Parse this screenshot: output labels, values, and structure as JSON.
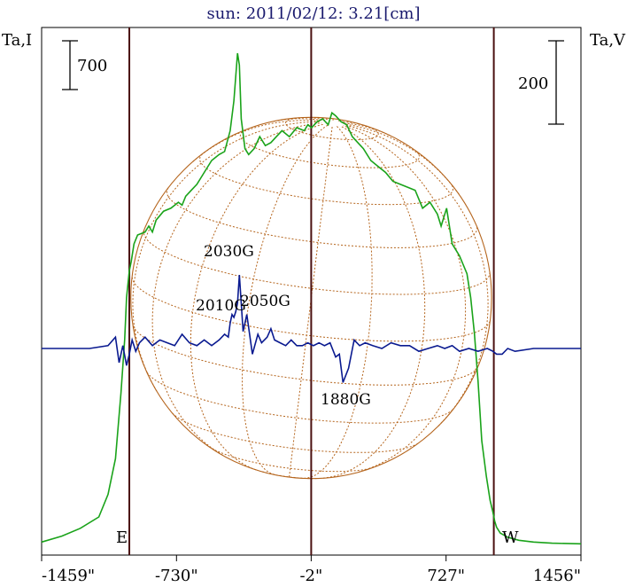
{
  "chart_data": {
    "type": "line",
    "title": "sun: 2011/02/12: 3.21[cm]",
    "ylabel_left": "Ta,I",
    "ylabel_right": "Ta,V",
    "scale_bar_left": "700",
    "scale_bar_right": "200",
    "x_ticks": [
      {
        "value": -1459,
        "label": "-1459\""
      },
      {
        "value": -730,
        "label": "-730\""
      },
      {
        "value": -2,
        "label": "-2\""
      },
      {
        "value": 727,
        "label": "727\""
      },
      {
        "value": 1456,
        "label": "1456\""
      }
    ],
    "xlim": [
      -1459,
      1456
    ],
    "limb_labels": {
      "east": "E",
      "west": "W"
    },
    "limb_positions": [
      -985,
      985
    ],
    "center_line": -2,
    "disk_radius": 975,
    "annotations": [
      {
        "text": "2030G",
        "x": -410
      },
      {
        "text": "2010G",
        "x": -470
      },
      {
        "text": "2050G",
        "x": -225
      },
      {
        "text": "1880G",
        "x": 160
      }
    ],
    "series": [
      {
        "name": "I",
        "color": "#1aa31a",
        "x": [
          -1459,
          -1350,
          -1250,
          -1150,
          -1100,
          -1060,
          -1030,
          -1010,
          -1000,
          -985,
          -975,
          -960,
          -940,
          -900,
          -880,
          -860,
          -840,
          -800,
          -760,
          -720,
          -700,
          -680,
          -650,
          -620,
          -580,
          -540,
          -500,
          -470,
          -440,
          -420,
          -400,
          -390,
          -380,
          -360,
          -340,
          -310,
          -280,
          -250,
          -220,
          -190,
          -160,
          -120,
          -80,
          -40,
          -20,
          0,
          30,
          60,
          90,
          110,
          130,
          160,
          190,
          220,
          250,
          280,
          320,
          360,
          400,
          440,
          480,
          520,
          560,
          600,
          640,
          680,
          700,
          730,
          760,
          800,
          840,
          860,
          880,
          900,
          920,
          945,
          965,
          980,
          990,
          1000,
          1020,
          1060,
          1120,
          1200,
          1300,
          1456
        ],
        "y": [
          100,
          200,
          330,
          520,
          900,
          1500,
          2600,
          3500,
          4200,
          4650,
          4800,
          5100,
          5250,
          5300,
          5400,
          5300,
          5500,
          5650,
          5700,
          5800,
          5750,
          5900,
          6000,
          6100,
          6300,
          6500,
          6600,
          6650,
          7000,
          7500,
          8300,
          8100,
          7200,
          6700,
          6600,
          6700,
          6900,
          6750,
          6800,
          6900,
          7000,
          6900,
          7050,
          7000,
          7100,
          7050,
          7150,
          7200,
          7100,
          7300,
          7250,
          7150,
          7100,
          6900,
          6800,
          6700,
          6500,
          6400,
          6300,
          6150,
          6100,
          6050,
          6000,
          5700,
          5800,
          5600,
          5400,
          5700,
          5100,
          4900,
          4600,
          4200,
          3600,
          2800,
          1800,
          1200,
          800,
          600,
          450,
          350,
          250,
          180,
          130,
          100,
          80,
          70
        ]
      },
      {
        "name": "V",
        "color": "#0a1a90",
        "x": [
          -1459,
          -1200,
          -1100,
          -1060,
          -1040,
          -1020,
          -1000,
          -985,
          -970,
          -950,
          -930,
          -900,
          -860,
          -820,
          -780,
          -740,
          -700,
          -660,
          -620,
          -580,
          -540,
          -500,
          -470,
          -450,
          -440,
          -430,
          -420,
          -410,
          -400,
          -390,
          -370,
          -350,
          -320,
          -290,
          -270,
          -240,
          -220,
          -200,
          -170,
          -140,
          -110,
          -80,
          -50,
          -20,
          10,
          40,
          70,
          100,
          130,
          150,
          170,
          200,
          230,
          260,
          290,
          330,
          380,
          430,
          480,
          530,
          580,
          630,
          680,
          720,
          760,
          800,
          850,
          900,
          950,
          980,
          1000,
          1030,
          1060,
          1100,
          1200,
          1456
        ],
        "y": [
          0,
          0,
          5,
          20,
          -25,
          5,
          -30,
          -10,
          15,
          -5,
          10,
          20,
          5,
          15,
          10,
          5,
          25,
          10,
          5,
          15,
          5,
          15,
          25,
          20,
          45,
          60,
          55,
          65,
          80,
          130,
          30,
          60,
          -10,
          25,
          10,
          20,
          35,
          15,
          10,
          5,
          15,
          5,
          5,
          10,
          5,
          10,
          5,
          10,
          -15,
          -10,
          -60,
          -35,
          15,
          5,
          10,
          5,
          0,
          10,
          5,
          5,
          -5,
          0,
          5,
          0,
          5,
          -5,
          0,
          -5,
          0,
          -5,
          -10,
          -10,
          0,
          -5,
          0,
          0
        ]
      }
    ]
  }
}
